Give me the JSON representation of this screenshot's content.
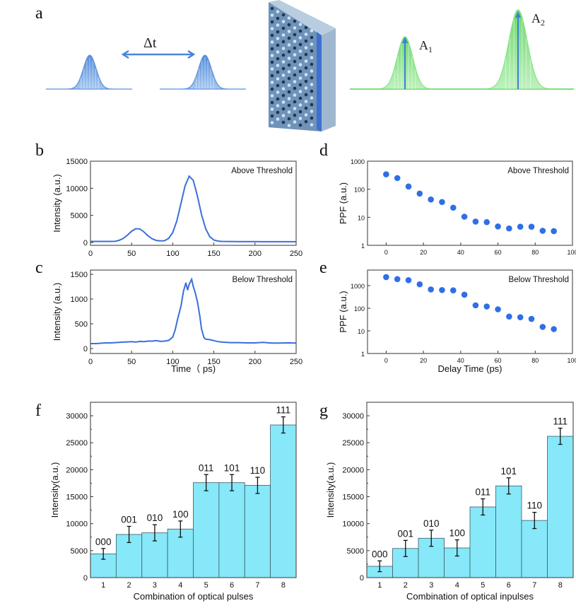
{
  "panel_labels": {
    "a": "a",
    "b": "b",
    "c": "c",
    "d": "d",
    "e": "e",
    "f": "f",
    "g": "g"
  },
  "panel_a": {
    "delta_t": "Δt",
    "a1": "A",
    "a1_sub": "1",
    "a2": "A",
    "a2_sub": "2",
    "colors": {
      "input_pulse": "#4a86d8",
      "output_pulse": "#7de07d",
      "plate": "#6f93b8",
      "arrow": "#3f7fd6"
    }
  },
  "colors": {
    "line": "#3a6fdc",
    "marker": "#2f6fe6",
    "bar": "#86e8f8",
    "bar_edge": "#3d5a66",
    "error": "#111111"
  },
  "chart_data": [
    {
      "id": "b",
      "type": "line",
      "annotation": "Above Threshold",
      "xlabel": "",
      "ylabel": "Intensity (a.u.)",
      "xlim": [
        0,
        250
      ],
      "ylim": [
        -520,
        15000
      ],
      "xticks": [
        "0",
        "50",
        "100",
        "150",
        "200",
        "250"
      ],
      "yticks": [
        "0",
        "5000",
        "10000",
        "15000"
      ],
      "x": [
        0,
        5,
        10,
        15,
        20,
        25,
        30,
        35,
        40,
        45,
        50,
        55,
        60,
        65,
        70,
        75,
        80,
        85,
        90,
        95,
        100,
        105,
        110,
        115,
        120,
        125,
        130,
        135,
        140,
        145,
        150,
        155,
        160,
        170,
        180,
        190,
        200,
        210,
        220,
        230,
        240,
        250
      ],
      "y": [
        200,
        200,
        200,
        200,
        200,
        200,
        210,
        400,
        760,
        1370,
        2080,
        2550,
        2500,
        1950,
        1230,
        680,
        380,
        290,
        330,
        760,
        1830,
        3980,
        7180,
        10480,
        12240,
        11450,
        8600,
        5160,
        2550,
        1080,
        460,
        260,
        200,
        180,
        170,
        160,
        160,
        150,
        150,
        150,
        150,
        150
      ]
    },
    {
      "id": "c",
      "type": "line",
      "annotation": "Below Threshold",
      "xlabel": "Time（ ps)",
      "ylabel": "Intensity (a.u.)",
      "xlim": [
        0,
        250
      ],
      "ylim": [
        -100,
        1586
      ],
      "xticks": [
        "0",
        "50",
        "100",
        "150",
        "200",
        "250"
      ],
      "yticks": [
        "0",
        "500",
        "1000",
        "1500"
      ],
      "x": [
        0,
        5,
        10,
        15,
        20,
        25,
        30,
        35,
        40,
        45,
        50,
        55,
        60,
        65,
        70,
        75,
        80,
        85,
        90,
        95,
        100,
        103,
        106,
        110,
        113,
        116,
        118,
        120,
        123,
        125,
        127,
        130,
        133,
        135,
        138,
        140,
        145,
        150,
        155,
        160,
        165,
        170,
        180,
        190,
        200,
        210,
        220,
        230,
        240,
        250
      ],
      "y": [
        100,
        100,
        105,
        110,
        115,
        115,
        120,
        125,
        130,
        135,
        140,
        130,
        145,
        140,
        150,
        150,
        160,
        145,
        150,
        165,
        230,
        380,
        600,
        850,
        1150,
        1330,
        1180,
        1300,
        1400,
        1250,
        1150,
        950,
        650,
        400,
        220,
        190,
        180,
        160,
        140,
        130,
        125,
        120,
        120,
        115,
        115,
        125,
        110,
        110,
        115,
        110
      ]
    },
    {
      "id": "d",
      "type": "scatter",
      "annotation": "Above Threshold",
      "xlabel": "",
      "ylabel": "PPF (a.u.)",
      "yscale": "log",
      "xlim": [
        -10,
        100
      ],
      "ylim": [
        1,
        1000
      ],
      "xticks": [
        "0",
        "20",
        "40",
        "60",
        "80",
        "100"
      ],
      "yticks": [
        "1",
        "10",
        "100",
        "1000"
      ],
      "x": [
        0,
        6,
        12,
        18,
        24,
        30,
        36,
        42,
        48,
        54,
        60,
        66,
        72,
        78,
        84,
        90
      ],
      "y": [
        340,
        250,
        125,
        70,
        43,
        35,
        22,
        10.5,
        7,
        6.7,
        4.7,
        4,
        4.6,
        4.6,
        3.3,
        3.2
      ]
    },
    {
      "id": "e",
      "type": "scatter",
      "annotation": "Below Threshold",
      "xlabel": "Delay Time (ps)",
      "ylabel": "PPF (a.u.)",
      "yscale": "log",
      "xlim": [
        -10,
        100
      ],
      "ylim": [
        1,
        4900
      ],
      "xticks": [
        "0",
        "20",
        "40",
        "60",
        "80",
        "100"
      ],
      "yticks": [
        "1",
        "10",
        "100",
        "1000"
      ],
      "x": [
        0,
        6,
        12,
        18,
        24,
        30,
        36,
        42,
        48,
        54,
        60,
        66,
        72,
        78,
        84,
        90
      ],
      "y": [
        2400,
        1950,
        1750,
        1150,
        680,
        640,
        620,
        400,
        135,
        120,
        90,
        43,
        40,
        34,
        15,
        12
      ]
    },
    {
      "id": "f",
      "type": "bar",
      "xlabel": "Combination of optical pulses",
      "ylabel": "Intensity(a.u.)",
      "ylim": [
        0,
        32500
      ],
      "categories": [
        "1",
        "2",
        "3",
        "4",
        "5",
        "6",
        "7",
        "8"
      ],
      "bar_labels": [
        "000",
        "001",
        "010",
        "100",
        "011",
        "101",
        "110",
        "111"
      ],
      "values": [
        4400,
        8000,
        8300,
        9000,
        17600,
        17600,
        17100,
        28300
      ],
      "errors": [
        1000,
        1500,
        1500,
        1500,
        1500,
        1500,
        1500,
        1500
      ],
      "yticks": [
        "0",
        "5000",
        "10000",
        "15000",
        "20000",
        "25000",
        "30000"
      ]
    },
    {
      "id": "g",
      "type": "bar",
      "xlabel": "Combination of optical inpulses",
      "ylabel": "Intensity(a.u.)",
      "ylim": [
        0,
        32500
      ],
      "categories": [
        "1",
        "2",
        "3",
        "4",
        "5",
        "6",
        "7",
        "8"
      ],
      "bar_labels": [
        "000",
        "001",
        "010",
        "100",
        "011",
        "101",
        "110",
        "111"
      ],
      "values": [
        2100,
        5400,
        7300,
        5500,
        13100,
        17000,
        10600,
        26200
      ],
      "errors": [
        1000,
        1500,
        1500,
        1500,
        1500,
        1500,
        1500,
        1500
      ],
      "yticks": [
        "0",
        "5000",
        "10000",
        "15000",
        "20000",
        "25000",
        "30000"
      ]
    }
  ]
}
